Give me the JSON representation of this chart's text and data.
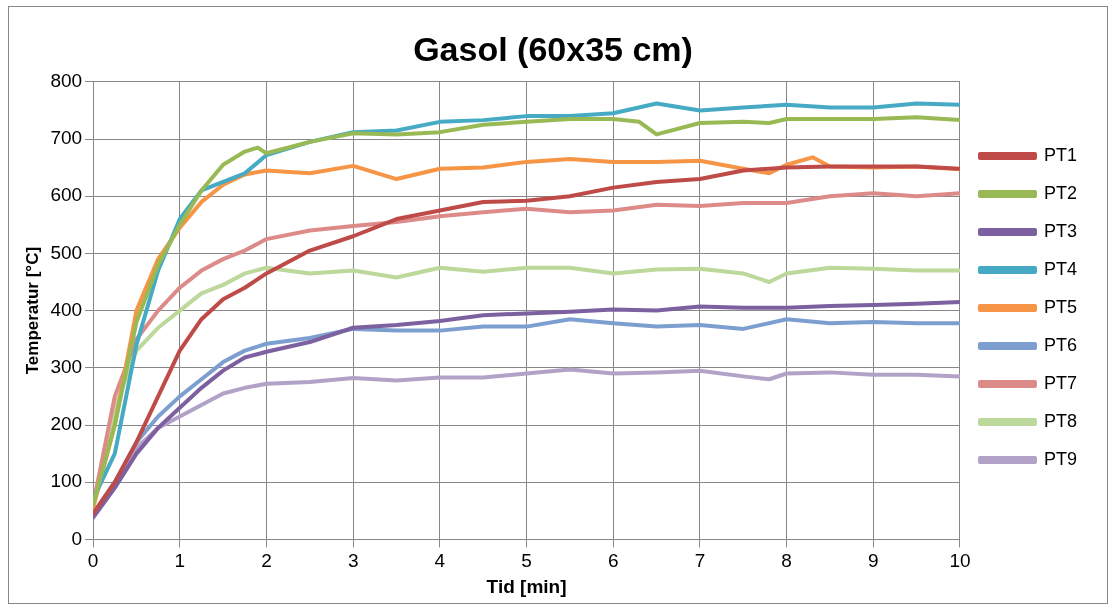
{
  "chart_data": {
    "type": "line",
    "title": "Gasol (60x35 cm)",
    "xlabel": "Tid [min]",
    "ylabel": "Temperatur [°C]",
    "xlim": [
      0,
      10
    ],
    "xticks": [
      0,
      1,
      2,
      3,
      4,
      5,
      6,
      7,
      8,
      9,
      10
    ],
    "ylim": [
      0,
      800
    ],
    "yticks": [
      0,
      100,
      200,
      300,
      400,
      500,
      600,
      700,
      800
    ],
    "grid": true,
    "legend": "right",
    "marker": "none",
    "line_style": "solid",
    "series": [
      {
        "name": "PT1",
        "color": "#be4b48",
        "x": [
          0,
          0.25,
          0.5,
          0.75,
          1,
          1.25,
          1.5,
          1.75,
          2,
          2.5,
          3,
          3.5,
          4,
          4.5,
          5,
          5.5,
          6,
          6.5,
          7,
          7.5,
          8,
          8.5,
          9,
          9.5,
          10
        ],
        "values": [
          45,
          100,
          170,
          250,
          330,
          385,
          420,
          440,
          465,
          505,
          530,
          560,
          575,
          590,
          592,
          600,
          615,
          625,
          630,
          645,
          650,
          652,
          652,
          652,
          648
        ]
      },
      {
        "name": "PT2",
        "color": "#98b954",
        "x": [
          0,
          0.25,
          0.5,
          0.75,
          1,
          1.25,
          1.5,
          1.75,
          1.9,
          2,
          2.5,
          3,
          3.5,
          4,
          4.5,
          5,
          5.5,
          6,
          6.3,
          6.5,
          7,
          7.5,
          7.8,
          8,
          8.5,
          9,
          9.5,
          10
        ],
        "values": [
          60,
          200,
          380,
          480,
          550,
          610,
          655,
          678,
          685,
          675,
          695,
          710,
          708,
          712,
          725,
          730,
          735,
          735,
          730,
          708,
          728,
          730,
          728,
          735,
          735,
          735,
          738,
          733
        ]
      },
      {
        "name": "PT3",
        "color": "#7d60a0",
        "x": [
          0,
          0.25,
          0.5,
          0.75,
          1,
          1.25,
          1.5,
          1.75,
          2,
          2.5,
          3,
          3.5,
          4,
          4.5,
          5,
          5.5,
          6,
          6.5,
          7,
          7.5,
          8,
          8.5,
          9,
          9.5,
          10
        ],
        "values": [
          38,
          90,
          150,
          195,
          230,
          265,
          295,
          318,
          328,
          345,
          370,
          375,
          382,
          392,
          395,
          398,
          402,
          400,
          407,
          405,
          405,
          408,
          410,
          412,
          415
        ]
      },
      {
        "name": "PT4",
        "color": "#46aac5",
        "x": [
          0,
          0.25,
          0.5,
          0.75,
          1,
          1.25,
          1.5,
          1.75,
          2,
          2.5,
          3,
          3.5,
          4,
          4.5,
          5,
          5.5,
          6,
          6.5,
          7,
          7.5,
          8,
          8.5,
          9,
          9.5,
          10
        ],
        "values": [
          70,
          150,
          340,
          470,
          560,
          610,
          625,
          640,
          672,
          695,
          712,
          715,
          730,
          733,
          740,
          740,
          745,
          762,
          750,
          755,
          760,
          755,
          755,
          762,
          760
        ]
      },
      {
        "name": "PT5",
        "color": "#f69546",
        "x": [
          0,
          0.25,
          0.5,
          0.75,
          1,
          1.25,
          1.5,
          1.75,
          2,
          2.5,
          3,
          3.5,
          4,
          4.5,
          5,
          5.5,
          6,
          6.5,
          7,
          7.5,
          7.8,
          8,
          8.3,
          8.5,
          9,
          9.5,
          10
        ],
        "values": [
          55,
          200,
          400,
          490,
          545,
          590,
          620,
          638,
          645,
          640,
          653,
          630,
          648,
          650,
          660,
          665,
          660,
          660,
          662,
          648,
          640,
          655,
          668,
          652,
          650,
          652,
          647
        ]
      },
      {
        "name": "PT6",
        "color": "#7c9fd0",
        "x": [
          0,
          0.25,
          0.5,
          0.75,
          1,
          1.25,
          1.5,
          1.75,
          2,
          2.5,
          3,
          3.5,
          4,
          4.5,
          5,
          5.5,
          6,
          6.5,
          7,
          7.5,
          8,
          8.5,
          9,
          9.5,
          10
        ],
        "values": [
          45,
          100,
          170,
          215,
          250,
          280,
          310,
          330,
          342,
          352,
          368,
          365,
          365,
          372,
          372,
          385,
          378,
          372,
          375,
          368,
          385,
          378,
          380,
          378,
          378
        ]
      },
      {
        "name": "PT7",
        "color": "#dd8b89",
        "x": [
          0,
          0.25,
          0.5,
          0.75,
          1,
          1.25,
          1.5,
          1.75,
          2,
          2.5,
          3,
          3.5,
          4,
          4.5,
          5,
          5.5,
          6,
          6.5,
          7,
          7.5,
          8,
          8.5,
          9,
          9.5,
          10
        ],
        "values": [
          60,
          250,
          350,
          400,
          440,
          470,
          490,
          505,
          525,
          540,
          548,
          555,
          565,
          572,
          578,
          572,
          575,
          585,
          583,
          588,
          588,
          600,
          605,
          600,
          605
        ]
      },
      {
        "name": "PT8",
        "color": "#bcd89a",
        "x": [
          0,
          0.25,
          0.5,
          0.75,
          1,
          1.25,
          1.5,
          1.75,
          2,
          2.5,
          3,
          3.5,
          4,
          4.5,
          5,
          5.5,
          6,
          6.5,
          7,
          7.5,
          7.8,
          8,
          8.5,
          9,
          9.5,
          10
        ],
        "values": [
          55,
          230,
          330,
          370,
          400,
          430,
          445,
          465,
          475,
          465,
          470,
          458,
          475,
          468,
          475,
          475,
          465,
          472,
          473,
          465,
          450,
          465,
          475,
          473,
          470,
          470
        ]
      },
      {
        "name": "PT9",
        "color": "#b3a2c7",
        "x": [
          0,
          0.25,
          0.5,
          0.75,
          1,
          1.25,
          1.5,
          1.75,
          2,
          2.5,
          3,
          3.5,
          4,
          4.5,
          5,
          5.5,
          6,
          6.5,
          7,
          7.5,
          7.8,
          8,
          8.5,
          9,
          9.5,
          10
        ],
        "values": [
          40,
          100,
          160,
          195,
          215,
          235,
          255,
          265,
          272,
          275,
          282,
          278,
          283,
          283,
          290,
          297,
          290,
          292,
          295,
          285,
          280,
          290,
          292,
          288,
          288,
          285
        ]
      }
    ]
  }
}
